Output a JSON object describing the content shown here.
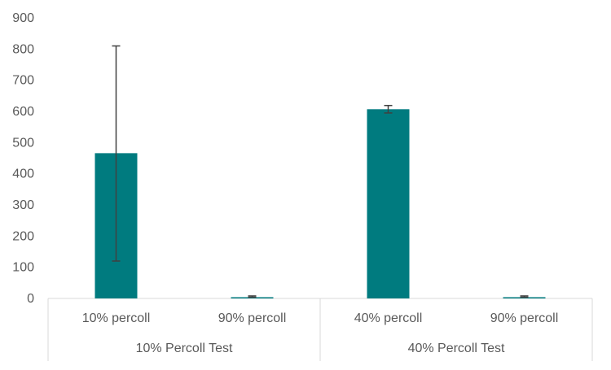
{
  "chart_data": {
    "type": "bar",
    "title": "",
    "xlabel": "",
    "ylabel": "",
    "ylim": [
      0,
      900
    ],
    "yticks": [
      0,
      100,
      200,
      300,
      400,
      500,
      600,
      700,
      800,
      900
    ],
    "grid": false,
    "legend": "none",
    "bar_color": "#007B7F",
    "error_color": "#404040",
    "categories": [
      "10% percoll",
      "90% percoll",
      "40% percoll",
      "90% percoll"
    ],
    "groups": [
      {
        "label": "10% Percoll Test",
        "span": 2
      },
      {
        "label": "40% Percoll Test",
        "span": 2
      }
    ],
    "values": [
      466,
      4,
      607,
      4
    ],
    "error_high": [
      810,
      8,
      619,
      8
    ],
    "error_low": [
      120,
      4,
      595,
      4
    ]
  }
}
